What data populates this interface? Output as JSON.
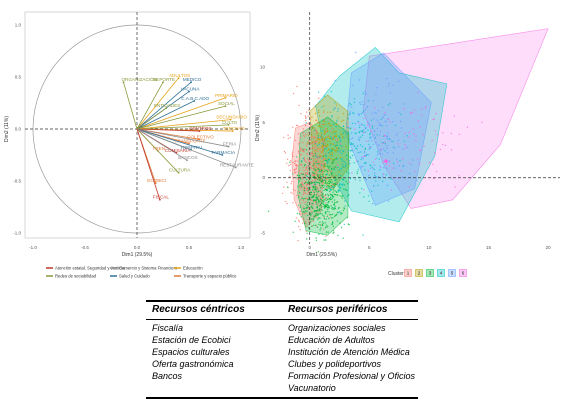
{
  "chart_data": [
    {
      "type": "biplot",
      "xlabel": "Dim1 (29.5%)",
      "ylabel": "Dim2 (11%)",
      "xlim": [
        -1,
        1
      ],
      "ylim": [
        -1,
        1
      ],
      "xticks": [
        "-1.0",
        "-0.5",
        "0.0",
        "0.5",
        "1.0"
      ],
      "yticks": [
        "1.0",
        "0.5",
        "0.0",
        "-0.5",
        "-1.0"
      ],
      "grid": false,
      "legend_position": "bottom",
      "groups": [
        {
          "label": "Atención estatal, Seguridad y Justicia",
          "color": "#c0392b"
        },
        {
          "label": "Comercio y Sistema Financiero",
          "color": "#8e8e8e"
        },
        {
          "label": "Educación",
          "color": "#e6a31a"
        },
        {
          "label": "Redes de sociabilidad",
          "color": "#8a9a3c"
        },
        {
          "label": "Salud y Cuidado",
          "color": "#2e6f96"
        },
        {
          "label": "Transporte y espacio público",
          "color": "#e07a3a"
        }
      ],
      "vectors": [
        {
          "label": "ORGANIZACIÓN",
          "x": -0.13,
          "y": 0.45,
          "group": 3
        },
        {
          "label": "ADULTOS",
          "x": 0.4,
          "y": 0.49,
          "group": 2
        },
        {
          "label": "MEDICO",
          "x": 0.52,
          "y": 0.45,
          "group": 4
        },
        {
          "label": "DEPORTE",
          "x": 0.25,
          "y": 0.45,
          "group": 3
        },
        {
          "label": "VACUNA",
          "x": 0.5,
          "y": 0.36,
          "group": 4
        },
        {
          "label": "PRIMARIO",
          "x": 0.85,
          "y": 0.3,
          "group": 2
        },
        {
          "label": "C.A.B.C.ADO",
          "x": 0.55,
          "y": 0.27,
          "group": 4
        },
        {
          "label": "SOCIAL",
          "x": 0.85,
          "y": 0.22,
          "group": 3
        },
        {
          "label": "ENTIDADES",
          "x": 0.28,
          "y": 0.2,
          "group": 3
        },
        {
          "label": "SECUNDARIO",
          "x": 0.9,
          "y": 0.09,
          "group": 2
        },
        {
          "label": "CULTO",
          "x": 0.88,
          "y": 0.04,
          "group": 3
        },
        {
          "label": "TERCEAD",
          "x": 0.92,
          "y": -0.02,
          "group": 2
        },
        {
          "label": "CENTROS",
          "x": 0.6,
          "y": -0.02,
          "group": 0
        },
        {
          "label": "COLECTIVO",
          "x": 0.6,
          "y": -0.1,
          "group": 5
        },
        {
          "label": "TRANSPORTE",
          "x": 0.5,
          "y": -0.14,
          "group": 5
        },
        {
          "label": "FERIA",
          "x": 0.88,
          "y": -0.17,
          "group": 1
        },
        {
          "label": "HOSPITAL",
          "x": 0.52,
          "y": -0.2,
          "group": 4
        },
        {
          "label": "FARMACIA",
          "x": 0.82,
          "y": -0.25,
          "group": 4
        },
        {
          "label": "TREN",
          "x": 0.2,
          "y": -0.21,
          "group": 5
        },
        {
          "label": "COMISARÍA",
          "x": 0.38,
          "y": -0.23,
          "group": 0
        },
        {
          "label": "BANCOS",
          "x": 0.48,
          "y": -0.3,
          "group": 1
        },
        {
          "label": "RESTAURANTE",
          "x": 0.95,
          "y": -0.37,
          "group": 1
        },
        {
          "label": "CULTURA",
          "x": 0.4,
          "y": -0.42,
          "group": 3
        },
        {
          "label": "ECOBICI",
          "x": 0.18,
          "y": -0.52,
          "group": 5
        },
        {
          "label": "FISCAL",
          "x": 0.22,
          "y": -0.68,
          "group": 0
        }
      ]
    },
    {
      "type": "scatter",
      "xlabel": "Dim1 (29.5%)",
      "ylabel": "Dim2 (11%)",
      "xlim": [
        -3.5,
        21
      ],
      "ylim": [
        -6,
        15
      ],
      "xticks": [
        "0",
        "5",
        "10",
        "15",
        "20"
      ],
      "yticks": [
        "10",
        "5",
        "0",
        "-5"
      ],
      "xtick_values": [
        0,
        5,
        10,
        15,
        20
      ],
      "ytick_values": [
        10,
        5,
        0,
        -5
      ],
      "grid": false,
      "legend_title": "Cluster",
      "legend_position": "bottom",
      "clusters": [
        {
          "id": "1",
          "color": "#f8766d",
          "hull": [
            [
              -1.2,
              4.5
            ],
            [
              0,
              5
            ],
            [
              1.2,
              3.5
            ],
            [
              1.0,
              -3
            ],
            [
              -0.3,
              -4.5
            ],
            [
              -1.3,
              -2
            ],
            [
              -1.5,
              1.5
            ]
          ]
        },
        {
          "id": "2",
          "color": "#b79f00",
          "hull": [
            [
              0,
              6
            ],
            [
              1.5,
              7.5
            ],
            [
              3.2,
              6
            ],
            [
              3.3,
              1
            ],
            [
              2,
              -1
            ],
            [
              0.4,
              0
            ]
          ]
        },
        {
          "id": "3",
          "color": "#00ba38",
          "hull": [
            [
              -0.8,
              4
            ],
            [
              1.5,
              5.5
            ],
            [
              3.3,
              4
            ],
            [
              3.2,
              -3.5
            ],
            [
              1.5,
              -5.2
            ],
            [
              -0.3,
              -4.8
            ],
            [
              -1.0,
              -1.5
            ]
          ]
        },
        {
          "id": "4",
          "color": "#00bfc4",
          "hull": [
            [
              0.5,
              6.5
            ],
            [
              2.5,
              9.2
            ],
            [
              5.5,
              11.8
            ],
            [
              7.5,
              9.5
            ],
            [
              11.5,
              8.5
            ],
            [
              10.5,
              2
            ],
            [
              7.5,
              -4
            ],
            [
              3.5,
              -3
            ],
            [
              1.5,
              1
            ]
          ]
        },
        {
          "id": "5",
          "color": "#619cff",
          "hull": [
            [
              3.5,
              9.5
            ],
            [
              6.2,
              11.3
            ],
            [
              10.2,
              6.8
            ],
            [
              8.8,
              -1
            ],
            [
              5.5,
              -2.5
            ],
            [
              3.0,
              4
            ]
          ]
        },
        {
          "id": "6",
          "color": "#f564e3",
          "hull": [
            [
              5,
              11
            ],
            [
              20,
              13.5
            ],
            [
              16,
              3
            ],
            [
              12,
              -2
            ],
            [
              8.5,
              -2.8
            ],
            [
              6.3,
              1
            ],
            [
              4.5,
              6
            ]
          ]
        }
      ],
      "centers": [
        {
          "cluster": "6",
          "x": 6.4,
          "y": 1.5
        }
      ]
    }
  ],
  "table": {
    "col1_header": "Recursos céntricos",
    "col2_header": "Recursos periféricos",
    "col1_items": [
      "Fiscalía",
      "Estación de Ecobici",
      "Espacios culturales",
      "Oferta gastronómica",
      "Bancos"
    ],
    "col2_items": [
      "Organizaciones sociales",
      "Educación de Adultos",
      "Institución de Atención Médica",
      "Clubes y polideportivos",
      "Formación Profesional y Oficios",
      "Vacunatorio"
    ]
  }
}
